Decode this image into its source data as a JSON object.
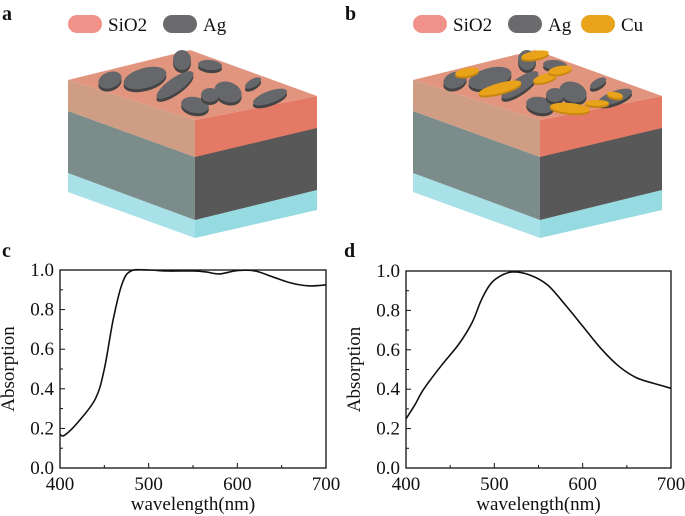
{
  "panels": {
    "a": {
      "label": "a",
      "legend": [
        "SiO2",
        "Ag"
      ]
    },
    "b": {
      "label": "b",
      "legend": [
        "SiO2",
        "Ag",
        "Cu"
      ]
    }
  },
  "colors": {
    "sio2": "#f0928a",
    "ag": "#6b6b6d",
    "cu": "#e8a31a",
    "substrate": "#a6e0e6",
    "metal_layer": "#5a5a5a"
  },
  "chart_data": [
    {
      "panel": "c",
      "type": "line",
      "xlabel": "wavelength(nm)",
      "ylabel": "Absorption",
      "xlim": [
        400,
        700
      ],
      "ylim": [
        0.0,
        1.0
      ],
      "xticks": [
        "400",
        "500",
        "600",
        "700"
      ],
      "yticks": [
        "0.0",
        "0.2",
        "0.4",
        "0.6",
        "0.8",
        "1.0"
      ],
      "grid": false,
      "x": [
        400,
        405,
        420,
        440,
        450,
        460,
        470,
        480,
        500,
        520,
        550,
        565,
        580,
        600,
        620,
        640,
        660,
        680,
        700
      ],
      "y": [
        0.17,
        0.165,
        0.23,
        0.35,
        0.5,
        0.75,
        0.93,
        0.995,
        1.0,
        0.995,
        0.995,
        0.99,
        0.98,
        0.997,
        0.995,
        0.965,
        0.935,
        0.92,
        0.925
      ]
    },
    {
      "panel": "d",
      "type": "line",
      "xlabel": "wavelength(nm)",
      "ylabel": "Absorption",
      "xlim": [
        400,
        700
      ],
      "ylim": [
        0.0,
        1.0
      ],
      "xticks": [
        "400",
        "500",
        "600",
        "700"
      ],
      "yticks": [
        "0.0",
        "0.2",
        "0.4",
        "0.6",
        "0.8",
        "1.0"
      ],
      "grid": false,
      "x": [
        400,
        410,
        420,
        440,
        460,
        475,
        485,
        495,
        505,
        520,
        540,
        560,
        580,
        600,
        620,
        640,
        660,
        680,
        700
      ],
      "y": [
        0.25,
        0.32,
        0.4,
        0.52,
        0.63,
        0.74,
        0.85,
        0.93,
        0.97,
        0.995,
        0.98,
        0.93,
        0.83,
        0.72,
        0.61,
        0.52,
        0.46,
        0.43,
        0.405
      ]
    }
  ]
}
